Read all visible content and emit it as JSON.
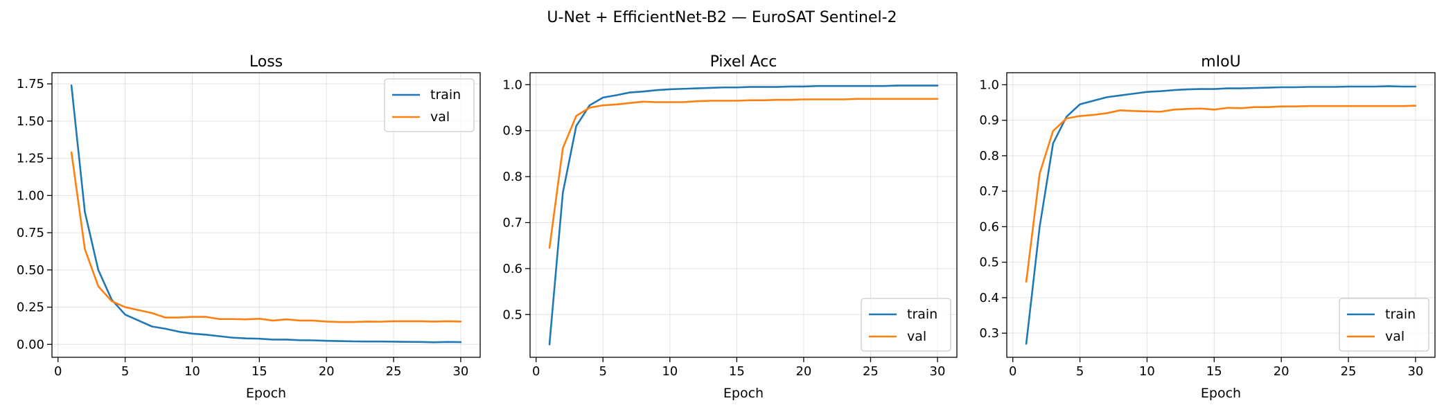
{
  "figure": {
    "suptitle": "U-Net + EfficientNet-B2 — EuroSAT Sentinel-2",
    "xlabel": "Epoch"
  },
  "colors": {
    "train": "#1f77b4",
    "val": "#ff7f0e",
    "grid": "#b0b0b0"
  },
  "chart_data": [
    {
      "type": "line",
      "title": "Loss",
      "xlabel": "Epoch",
      "ylabel": "",
      "xlim": [
        -0.45,
        31.45
      ],
      "ylim": [
        -0.087,
        1.825
      ],
      "xticks": [
        0,
        5,
        10,
        15,
        20,
        25,
        30
      ],
      "yticks": [
        0.0,
        0.25,
        0.5,
        0.75,
        1.0,
        1.25,
        1.5,
        1.75
      ],
      "ytick_labels": [
        "0.00",
        "0.25",
        "0.50",
        "0.75",
        "1.00",
        "1.25",
        "1.50",
        "1.75"
      ],
      "grid": true,
      "legend": "upper right",
      "x": [
        1,
        2,
        3,
        4,
        5,
        6,
        7,
        8,
        9,
        10,
        11,
        12,
        13,
        14,
        15,
        16,
        17,
        18,
        19,
        20,
        21,
        22,
        23,
        24,
        25,
        26,
        27,
        28,
        29,
        30
      ],
      "series": [
        {
          "name": "train",
          "values": [
            1.74,
            0.89,
            0.5,
            0.3,
            0.2,
            0.16,
            0.12,
            0.105,
            0.085,
            0.072,
            0.065,
            0.055,
            0.045,
            0.04,
            0.038,
            0.032,
            0.032,
            0.028,
            0.027,
            0.024,
            0.022,
            0.02,
            0.019,
            0.019,
            0.018,
            0.017,
            0.016,
            0.014,
            0.016,
            0.015
          ]
        },
        {
          "name": "val",
          "values": [
            1.29,
            0.64,
            0.39,
            0.29,
            0.25,
            0.23,
            0.21,
            0.18,
            0.18,
            0.185,
            0.185,
            0.17,
            0.17,
            0.168,
            0.172,
            0.16,
            0.168,
            0.16,
            0.16,
            0.153,
            0.15,
            0.15,
            0.153,
            0.152,
            0.155,
            0.155,
            0.155,
            0.153,
            0.155,
            0.153
          ]
        }
      ]
    },
    {
      "type": "line",
      "title": "Pixel Acc",
      "xlabel": "Epoch",
      "ylabel": "",
      "xlim": [
        -0.45,
        31.45
      ],
      "ylim": [
        0.407,
        1.026
      ],
      "xticks": [
        0,
        5,
        10,
        15,
        20,
        25,
        30
      ],
      "yticks": [
        0.5,
        0.6,
        0.7,
        0.8,
        0.9,
        1.0
      ],
      "ytick_labels": [
        "0.5",
        "0.6",
        "0.7",
        "0.8",
        "0.9",
        "1.0"
      ],
      "grid": true,
      "legend": "lower right",
      "x": [
        1,
        2,
        3,
        4,
        5,
        6,
        7,
        8,
        9,
        10,
        11,
        12,
        13,
        14,
        15,
        16,
        17,
        18,
        19,
        20,
        21,
        22,
        23,
        24,
        25,
        26,
        27,
        28,
        29,
        30
      ],
      "series": [
        {
          "name": "train",
          "values": [
            0.435,
            0.765,
            0.91,
            0.955,
            0.972,
            0.977,
            0.983,
            0.985,
            0.988,
            0.99,
            0.991,
            0.992,
            0.993,
            0.994,
            0.994,
            0.995,
            0.995,
            0.995,
            0.996,
            0.996,
            0.997,
            0.997,
            0.997,
            0.997,
            0.997,
            0.997,
            0.998,
            0.998,
            0.998,
            0.998
          ]
        },
        {
          "name": "val",
          "values": [
            0.645,
            0.862,
            0.932,
            0.95,
            0.955,
            0.957,
            0.96,
            0.963,
            0.962,
            0.962,
            0.962,
            0.964,
            0.965,
            0.965,
            0.965,
            0.966,
            0.966,
            0.967,
            0.967,
            0.968,
            0.968,
            0.968,
            0.968,
            0.969,
            0.969,
            0.969,
            0.969,
            0.969,
            0.969,
            0.969
          ]
        }
      ]
    },
    {
      "type": "line",
      "title": "mIoU",
      "xlabel": "Epoch",
      "ylabel": "",
      "xlim": [
        -0.45,
        31.45
      ],
      "ylim": [
        0.232,
        1.034
      ],
      "xticks": [
        0,
        5,
        10,
        15,
        20,
        25,
        30
      ],
      "yticks": [
        0.3,
        0.4,
        0.5,
        0.6,
        0.7,
        0.8,
        0.9,
        1.0
      ],
      "ytick_labels": [
        "0.3",
        "0.4",
        "0.5",
        "0.6",
        "0.7",
        "0.8",
        "0.9",
        "1.0"
      ],
      "grid": true,
      "legend": "lower right",
      "x": [
        1,
        2,
        3,
        4,
        5,
        6,
        7,
        8,
        9,
        10,
        11,
        12,
        13,
        14,
        15,
        16,
        17,
        18,
        19,
        20,
        21,
        22,
        23,
        24,
        25,
        26,
        27,
        28,
        29,
        30
      ],
      "series": [
        {
          "name": "train",
          "values": [
            0.27,
            0.6,
            0.835,
            0.91,
            0.945,
            0.955,
            0.965,
            0.97,
            0.975,
            0.98,
            0.982,
            0.985,
            0.987,
            0.988,
            0.988,
            0.99,
            0.99,
            0.991,
            0.992,
            0.993,
            0.993,
            0.994,
            0.994,
            0.994,
            0.995,
            0.995,
            0.995,
            0.996,
            0.995,
            0.995
          ]
        },
        {
          "name": "val",
          "values": [
            0.445,
            0.75,
            0.87,
            0.905,
            0.912,
            0.915,
            0.92,
            0.928,
            0.926,
            0.925,
            0.924,
            0.93,
            0.932,
            0.933,
            0.93,
            0.935,
            0.934,
            0.937,
            0.937,
            0.939,
            0.939,
            0.94,
            0.94,
            0.94,
            0.94,
            0.94,
            0.94,
            0.94,
            0.94,
            0.941
          ]
        }
      ]
    }
  ]
}
